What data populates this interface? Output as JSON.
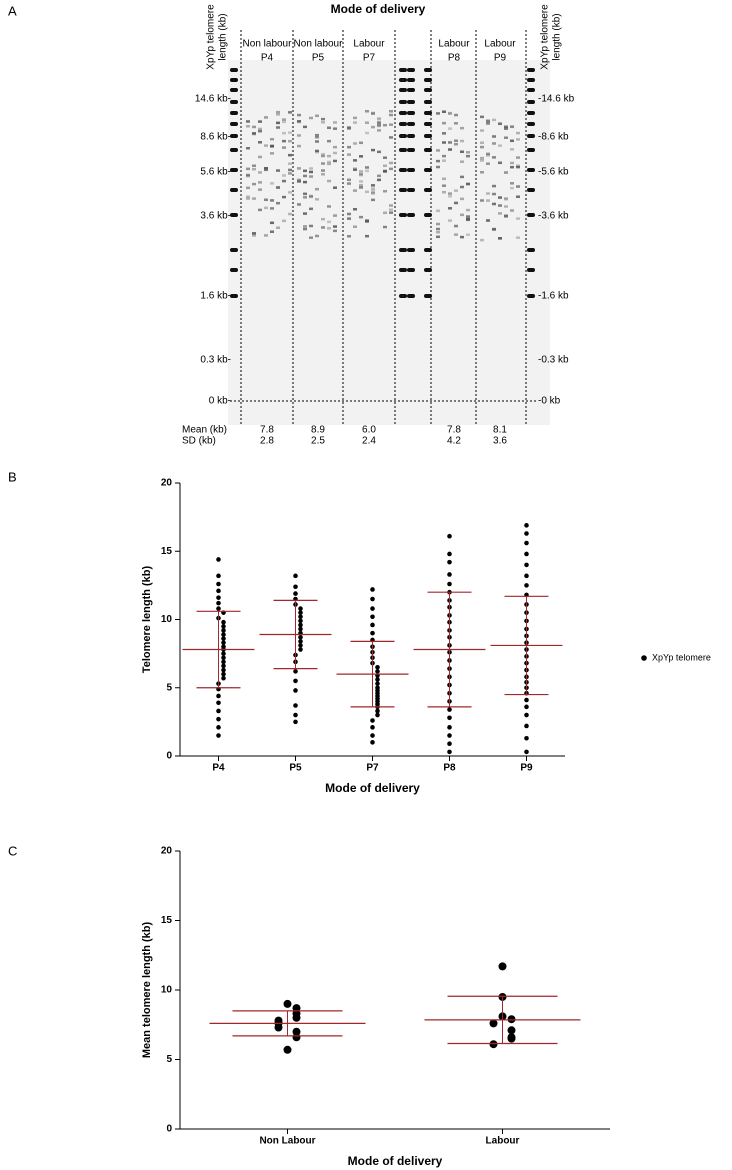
{
  "panel_labels": [
    "A",
    "B",
    "C"
  ],
  "gel": {
    "title": "Mode of delivery",
    "axis_label_left": [
      "XpYp telomere",
      "length (kb)"
    ],
    "axis_label_right": [
      "XpYp telomere",
      "length (kb)"
    ],
    "ladder_left": [
      "14.6 kb-",
      "8.6 kb-",
      "5.6 kb-",
      "3.6 kb-",
      "1.6 kb-",
      "0.3 kb-",
      "0 kb-"
    ],
    "ladder_right": [
      "-14.6 kb",
      "-8.6 kb",
      "-5.6 kb",
      "-3.6 kb",
      "-1.6 kb",
      "-0.3 kb",
      "-0 kb"
    ],
    "mean_label": "Mean (kb)",
    "sd_label": "SD (kb)",
    "lanes": [
      {
        "group": "Non labour",
        "sample": "P4",
        "mean": "7.8",
        "sd": "2.8"
      },
      {
        "group": "Non labour",
        "sample": "P5",
        "mean": "8.9",
        "sd": "2.5"
      },
      {
        "group": "Labour",
        "sample": "P7",
        "mean": "6.0",
        "sd": "2.4"
      },
      {
        "group": "Labour",
        "sample": "P8",
        "mean": "7.8",
        "sd": "4.2"
      },
      {
        "group": "Labour",
        "sample": "P9",
        "mean": "8.1",
        "sd": "3.6"
      }
    ]
  },
  "chart_data": [
    {
      "type": "strip",
      "y_label": "Telomere length (kb)",
      "x_label": "Mode of delivery",
      "categories": [
        "P4",
        "P5",
        "P7",
        "P8",
        "P9"
      ],
      "ylim": [
        0,
        20
      ],
      "yticks": [
        0,
        5,
        10,
        15,
        20
      ],
      "mean_color": "#a0282d",
      "mean": [
        7.8,
        8.9,
        6.0,
        7.8,
        8.1
      ],
      "sd": [
        2.8,
        2.5,
        2.4,
        4.2,
        3.6
      ],
      "legend": "right",
      "series": [
        {
          "name": "XpYp telomere",
          "color": "#000000",
          "values": [
            [
              14.4,
              13.2,
              12.6,
              12.1,
              11.6,
              11.2,
              10.8,
              10.5,
              10.1,
              9.8,
              9.5,
              9.2,
              8.9,
              8.6,
              8.3,
              8.0,
              7.8,
              7.5,
              7.2,
              6.9,
              6.6,
              6.3,
              6.0,
              5.7,
              5.3,
              4.9,
              4.4,
              3.9,
              3.3,
              2.7,
              2.1,
              1.5
            ],
            [
              13.2,
              12.4,
              11.9,
              11.5,
              11.1,
              10.8,
              10.5,
              10.2,
              9.9,
              9.6,
              9.3,
              9.0,
              8.7,
              8.4,
              8.1,
              7.8,
              7.4,
              6.9,
              6.2,
              5.5,
              4.8,
              3.7,
              3.0,
              2.5
            ],
            [
              12.2,
              11.5,
              10.8,
              10.2,
              9.6,
              9.0,
              8.5,
              8.0,
              7.6,
              7.2,
              6.8,
              6.5,
              6.2,
              5.9,
              5.6,
              5.3,
              5.0,
              4.8,
              4.6,
              4.4,
              4.2,
              4.0,
              3.8,
              3.6,
              3.3,
              3.0,
              2.6,
              2.1,
              1.5,
              1.0
            ],
            [
              16.1,
              14.8,
              14.2,
              13.3,
              12.6,
              12.0,
              11.4,
              10.9,
              10.3,
              9.8,
              9.2,
              8.7,
              8.1,
              7.6,
              7.0,
              6.4,
              5.8,
              5.2,
              4.6,
              4.0,
              3.4,
              2.8,
              2.1,
              1.5,
              0.9,
              0.3
            ],
            [
              16.9,
              16.3,
              15.6,
              14.8,
              14.0,
              13.2,
              12.5,
              11.8,
              11.1,
              10.5,
              9.9,
              9.3,
              8.8,
              8.3,
              7.8,
              7.3,
              6.8,
              6.3,
              5.8,
              5.4,
              5.0,
              4.6,
              4.1,
              3.6,
              3.0,
              2.2,
              1.3,
              0.3
            ]
          ]
        }
      ]
    },
    {
      "type": "strip",
      "y_label": "Mean telomere length (kb)",
      "x_label": "Mode of delivery",
      "categories": [
        "Non Labour",
        "Labour"
      ],
      "ylim": [
        0,
        20
      ],
      "yticks": [
        0,
        5,
        10,
        15,
        20
      ],
      "mean_color": "#a0282d",
      "mean": [
        7.6,
        7.85
      ],
      "sd": [
        0.9,
        1.7
      ],
      "series": [
        {
          "color": "#000000",
          "values": [
            [
              9.0,
              8.7,
              8.3,
              8.0,
              7.8,
              7.6,
              7.3,
              7.0,
              6.6,
              5.7
            ],
            [
              11.7,
              9.5,
              8.1,
              7.9,
              7.6,
              7.1,
              6.6,
              6.5,
              6.1
            ]
          ]
        }
      ]
    }
  ]
}
